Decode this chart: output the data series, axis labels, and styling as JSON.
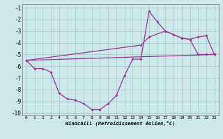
{
  "xlabel": "Windchill (Refroidissement éolien,°C)",
  "bg_color": "#cce8e8",
  "grid_color": "#aacccc",
  "line_color": "#993399",
  "xlim": [
    -0.5,
    23.5
  ],
  "ylim": [
    -10.2,
    -0.7
  ],
  "xticks": [
    0,
    1,
    2,
    3,
    4,
    5,
    6,
    7,
    8,
    9,
    10,
    11,
    12,
    13,
    14,
    15,
    16,
    17,
    18,
    19,
    20,
    21,
    22,
    23
  ],
  "yticks": [
    -10,
    -9,
    -8,
    -7,
    -6,
    -5,
    -4,
    -3,
    -2,
    -1
  ],
  "line1_x": [
    0,
    1,
    2,
    3,
    4,
    5,
    6,
    7,
    8,
    9,
    10,
    11,
    12,
    13,
    14,
    15,
    16,
    17,
    18,
    19,
    20,
    21,
    22,
    23
  ],
  "line1_y": [
    -5.5,
    -6.2,
    -6.2,
    -6.5,
    -8.3,
    -8.8,
    -8.9,
    -9.2,
    -9.7,
    -9.7,
    -9.2,
    -8.5,
    -6.8,
    -5.4,
    -5.4,
    -1.3,
    -2.2,
    -3.0,
    -3.3,
    -3.6,
    -3.7,
    -5.0,
    -5.0,
    -5.0
  ],
  "line2_x": [
    0,
    23
  ],
  "line2_y": [
    -5.5,
    -5.0
  ],
  "line3_x": [
    0,
    14,
    15,
    17,
    18,
    19,
    20,
    21,
    22,
    23
  ],
  "line3_y": [
    -5.5,
    -4.2,
    -3.5,
    -3.0,
    -3.3,
    -3.6,
    -3.7,
    -3.5,
    -3.4,
    -5.0
  ]
}
